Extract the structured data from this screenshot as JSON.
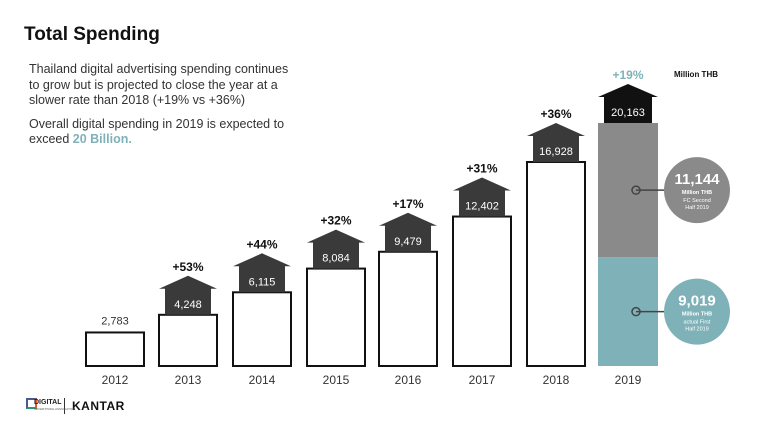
{
  "header": {
    "title": "Total Spending"
  },
  "description": {
    "line1": "Thailand digital advertising spending continues to grow but is projected to close the year at a slower rate than 2018 (+19% vs +36%)",
    "line2_prefix": "Overall digital spending in 2019 is expected to exceed ",
    "line2_highlight": "20 Billion."
  },
  "unit_label": "Million THB",
  "colors": {
    "arrow": "#3a3a3a",
    "arrow_2018": "#3a3a3a",
    "arrow_2019": "#111111",
    "second_half": "#8a8a8a",
    "first_half": "#7fb2b8",
    "accent_text": "#7fb2b8"
  },
  "chart_data": {
    "type": "bar",
    "title": "Total Spending",
    "ylabel": "Million THB",
    "categories": [
      "2012",
      "2013",
      "2014",
      "2015",
      "2016",
      "2017",
      "2018",
      "2019"
    ],
    "values": [
      2783,
      4248,
      6115,
      8084,
      9479,
      12402,
      16928,
      20163
    ],
    "growth_labels": [
      "",
      "+53%",
      "+44%",
      "+32%",
      "+17%",
      "+31%",
      "+36%",
      "+19%"
    ],
    "value_labels": [
      "2,783",
      "4,248",
      "6,115",
      "8,084",
      "9,479",
      "12,402",
      "16,928",
      "20,163"
    ],
    "stacked_2019": [
      {
        "name": "actual First Half 2019",
        "value": 9019,
        "label": "9,019",
        "unit": "Million THB",
        "note": "actual First Half 2019"
      },
      {
        "name": "FC Second Half 2019",
        "value": 11144,
        "label": "11,144",
        "unit": "Million THB",
        "note": "FC Second Half 2019"
      }
    ],
    "ylim": [
      0,
      20163
    ]
  },
  "footer": {
    "logo_text": "DIGITAL",
    "logo_sub": "ADVERTISING ASSOCIATION",
    "brand": "KANTAR"
  }
}
